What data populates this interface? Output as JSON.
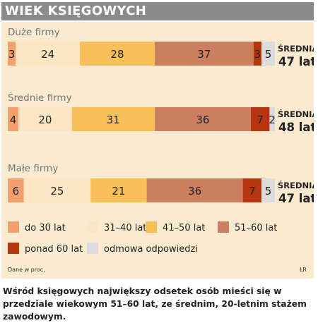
{
  "title": "WIEK KSIĘGOWYCH",
  "note": "Dane w proc.",
  "credit": "ŁR",
  "caption": "Wśród księgowych największy odsetek osób mieści się w przedziale wiekowym 51–60 lat, ze średnim, 20-letnim stażem zawodowym.",
  "colors": {
    "header_bg": "#8b8b8b",
    "panel_bg": "#faebd0",
    "do30": "#f2a06e",
    "31_40": "#fde6c4",
    "41_50": "#f9c05a",
    "51_60": "#cb7f5e",
    "ponad60": "#b5360f",
    "odmowa": "#dcdcdc"
  },
  "chart_data": {
    "type": "bar",
    "stacked": true,
    "orientation": "horizontal",
    "xlim": [
      0,
      100
    ],
    "unit": "%",
    "categories": [
      "Duże firmy",
      "Średnie firmy",
      "Małe firmy"
    ],
    "series": [
      {
        "name": "do 30 lat",
        "color": "#f2a06e",
        "values": [
          3,
          4,
          6
        ]
      },
      {
        "name": "31–40 lat",
        "color": "#fde6c4",
        "values": [
          24,
          20,
          25
        ]
      },
      {
        "name": "41–50 lat",
        "color": "#f9c05a",
        "values": [
          28,
          31,
          21
        ]
      },
      {
        "name": "51–60 lat",
        "color": "#cb7f5e",
        "values": [
          37,
          36,
          36
        ]
      },
      {
        "name": "ponad 60 lat",
        "color": "#b5360f",
        "values": [
          3,
          7,
          7
        ]
      },
      {
        "name": "odmowa odpowiedzi",
        "color": "#dcdcdc",
        "values": [
          5,
          2,
          5
        ]
      }
    ],
    "averages": [
      {
        "label": "ŚREDNIA",
        "value": "47 lat"
      },
      {
        "label": "ŚREDNIA",
        "value": "48 lat"
      },
      {
        "label": "ŚREDNIA",
        "value": "47 lat"
      }
    ],
    "legend_placement": "bottom",
    "grid": false
  }
}
